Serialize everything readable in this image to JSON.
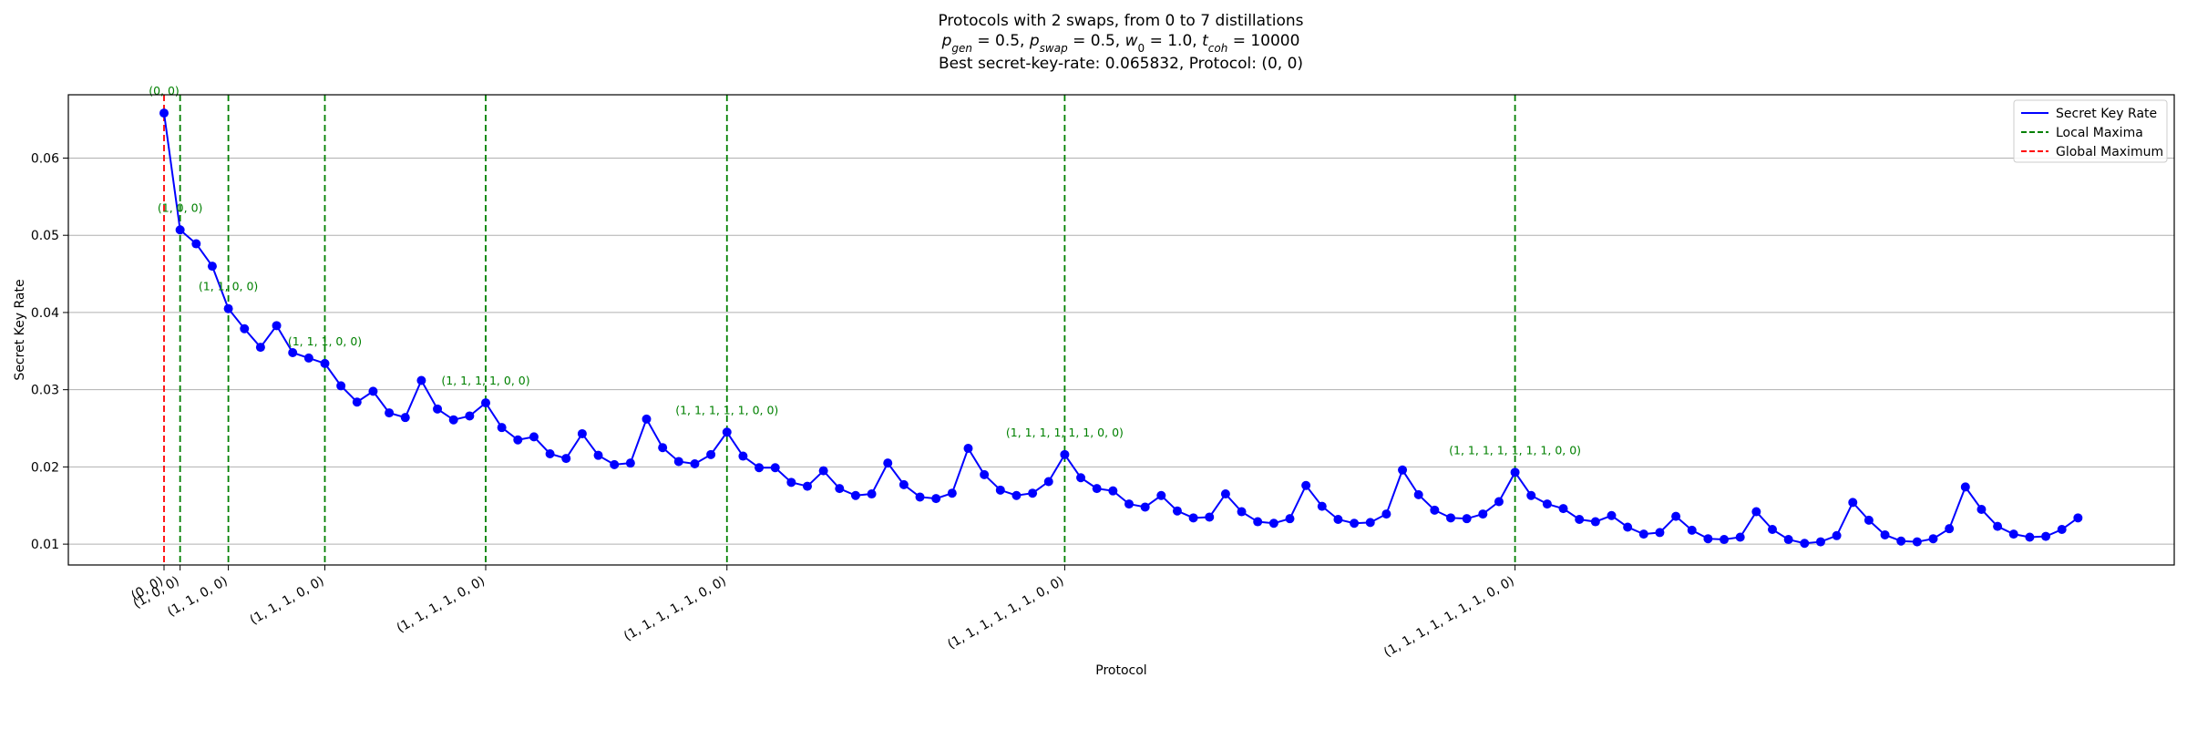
{
  "chart_data": {
    "type": "line",
    "title": "Protocols with 2 swaps, from 0 to 7 distillations",
    "subtitle_parts": {
      "p_gen": "p",
      "p_gen_sub": "gen",
      "p_gen_val": " = 0.5, ",
      "p_swap": "p",
      "p_swap_sub": "swap",
      "p_swap_val": " = 0.5, ",
      "w0": "w",
      "w0_sub": "0",
      "w0_val": " = 1.0, ",
      "t_coh": "t",
      "t_coh_sub": "coh",
      "t_coh_val": " = 10000"
    },
    "best_line": "Best secret-key-rate: 0.065832, Protocol: (0, 0)",
    "xlabel": "Protocol",
    "ylabel": "Secret Key Rate",
    "ylim": [
      0.0073,
      0.0682
    ],
    "yticks": [
      "0.01",
      "0.02",
      "0.03",
      "0.04",
      "0.05",
      "0.06"
    ],
    "ytick_values": [
      0.01,
      0.02,
      0.03,
      0.04,
      0.05,
      0.06
    ],
    "grid_y": true,
    "legend_position": "top-right",
    "series": [
      {
        "name": "Secret Key Rate",
        "color": "#0000ff",
        "values": [
          0.065832,
          0.0507,
          0.0489,
          0.046,
          0.0405,
          0.0379,
          0.0355,
          0.0383,
          0.0348,
          0.0341,
          0.0334,
          0.0305,
          0.0284,
          0.0298,
          0.027,
          0.0264,
          0.0312,
          0.0275,
          0.0261,
          0.0266,
          0.0283,
          0.0251,
          0.0235,
          0.0239,
          0.0217,
          0.0211,
          0.0243,
          0.0215,
          0.0203,
          0.0205,
          0.0262,
          0.0225,
          0.0207,
          0.0204,
          0.0216,
          0.0245,
          0.0214,
          0.0199,
          0.0199,
          0.018,
          0.0175,
          0.0195,
          0.0172,
          0.0163,
          0.0165,
          0.0205,
          0.0177,
          0.0161,
          0.0159,
          0.0166,
          0.0224,
          0.019,
          0.017,
          0.0163,
          0.0166,
          0.0181,
          0.0216,
          0.0186,
          0.0172,
          0.0169,
          0.0152,
          0.0148,
          0.0163,
          0.0143,
          0.0134,
          0.0135,
          0.0165,
          0.0142,
          0.0129,
          0.0127,
          0.0133,
          0.0176,
          0.0149,
          0.0132,
          0.0127,
          0.0128,
          0.0139,
          0.0196,
          0.0164,
          0.0144,
          0.0134,
          0.0133,
          0.0139,
          0.0155,
          0.0193,
          0.0163,
          0.0152,
          0.0146,
          0.0132,
          0.0129,
          0.0137,
          0.0122,
          0.0113,
          0.0115,
          0.0136,
          0.0118,
          0.0107,
          0.0106,
          0.0109,
          0.0142,
          0.0119,
          0.0106,
          0.0101,
          0.0103,
          0.0111,
          0.0154,
          0.0131,
          0.0112,
          0.0104,
          0.0103,
          0.0107,
          0.012,
          0.0174,
          0.0145,
          0.0123,
          0.0113,
          0.0109,
          0.011,
          0.0119,
          0.0134
        ]
      }
    ],
    "legend": {
      "secret_key_rate": "Secret Key Rate",
      "local_maxima": "Local Maxima",
      "global_maximum": "Global Maximum"
    },
    "colors": {
      "line": "#0000ff",
      "local": "#008000",
      "global": "#ff0000"
    },
    "global_maximum": {
      "index": 0,
      "label": "(0, 0)"
    },
    "local_maxima": [
      {
        "index": 1,
        "label": "(1, 0, 0)"
      },
      {
        "index": 4,
        "label": "(1, 1, 0, 0)"
      },
      {
        "index": 10,
        "label": "(1, 1, 1, 0, 0)"
      },
      {
        "index": 20,
        "label": "(1, 1, 1, 1, 0, 0)"
      },
      {
        "index": 35,
        "label": "(1, 1, 1, 1, 1, 0, 0)"
      },
      {
        "index": 56,
        "label": "(1, 1, 1, 1, 1, 1, 0, 0)"
      },
      {
        "index": 84,
        "label": "(1, 1, 1, 1, 1, 1, 1, 0, 0)"
      }
    ],
    "xtick_labels": [
      {
        "index": 0,
        "label": "(0, 0)"
      },
      {
        "index": 1,
        "label": "(1, 0, 0)"
      },
      {
        "index": 4,
        "label": "(1, 1, 0, 0)"
      },
      {
        "index": 10,
        "label": "(1, 1, 1, 0, 0)"
      },
      {
        "index": 20,
        "label": "(1, 1, 1, 1, 0, 0)"
      },
      {
        "index": 35,
        "label": "(1, 1, 1, 1, 1, 0, 0)"
      },
      {
        "index": 56,
        "label": "(1, 1, 1, 1, 1, 1, 0, 0)"
      },
      {
        "index": 84,
        "label": "(1, 1, 1, 1, 1, 1, 1, 0, 0)"
      }
    ]
  }
}
